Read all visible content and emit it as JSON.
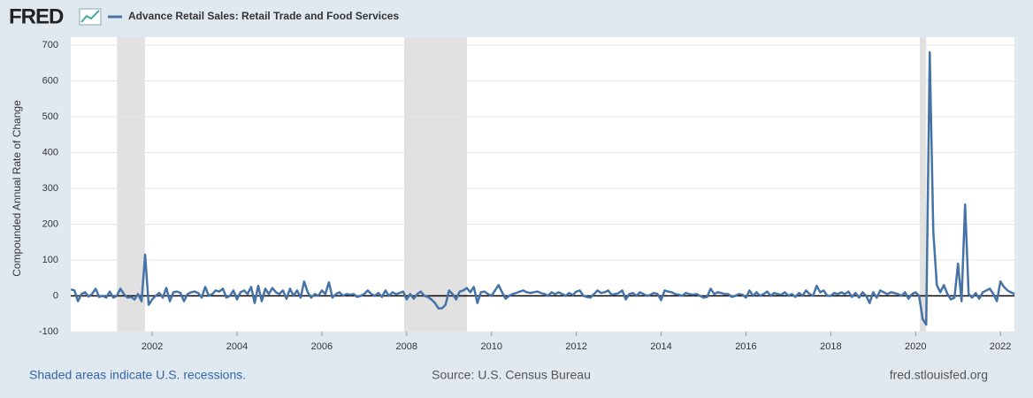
{
  "logo": "FRED",
  "chart_data": {
    "type": "line",
    "title": "Advance Retail Sales: Retail Trade and Food Services",
    "y_label": "Compounded Annual Rate of Change",
    "recession_note": "Shaded areas indicate U.S. recessions.",
    "source": "Source: U.S. Census Bureau",
    "site": "fred.stlouisfed.org",
    "xlim": [
      2000.08,
      2022.33
    ],
    "xticks": [
      2002,
      2004,
      2006,
      2008,
      2010,
      2012,
      2014,
      2016,
      2018,
      2020,
      2022
    ],
    "ylim": [
      -100,
      700
    ],
    "yticks": [
      -100,
      0,
      100,
      200,
      300,
      400,
      500,
      600,
      700
    ],
    "grid": true,
    "recessions": [
      [
        2001.17,
        2001.83
      ],
      [
        2007.94,
        2009.42
      ],
      [
        2020.1,
        2020.25
      ]
    ],
    "x": [
      2000.083,
      2000.167,
      2000.25,
      2000.333,
      2000.417,
      2000.5,
      2000.583,
      2000.667,
      2000.75,
      2000.833,
      2000.917,
      2001,
      2001.083,
      2001.167,
      2001.25,
      2001.333,
      2001.417,
      2001.5,
      2001.583,
      2001.667,
      2001.75,
      2001.833,
      2001.917,
      2002,
      2002.083,
      2002.167,
      2002.25,
      2002.333,
      2002.417,
      2002.5,
      2002.583,
      2002.667,
      2002.75,
      2002.833,
      2002.917,
      2003,
      2003.083,
      2003.167,
      2003.25,
      2003.333,
      2003.417,
      2003.5,
      2003.583,
      2003.667,
      2003.75,
      2003.833,
      2003.917,
      2004,
      2004.083,
      2004.167,
      2004.25,
      2004.333,
      2004.417,
      2004.5,
      2004.583,
      2004.667,
      2004.75,
      2004.833,
      2004.917,
      2005,
      2005.083,
      2005.167,
      2005.25,
      2005.333,
      2005.417,
      2005.5,
      2005.583,
      2005.667,
      2005.75,
      2005.833,
      2005.917,
      2006,
      2006.083,
      2006.167,
      2006.25,
      2006.333,
      2006.417,
      2006.5,
      2006.583,
      2006.667,
      2006.75,
      2006.833,
      2006.917,
      2007,
      2007.083,
      2007.167,
      2007.25,
      2007.333,
      2007.417,
      2007.5,
      2007.583,
      2007.667,
      2007.75,
      2007.833,
      2007.917,
      2008,
      2008.083,
      2008.167,
      2008.25,
      2008.333,
      2008.417,
      2008.5,
      2008.583,
      2008.667,
      2008.75,
      2008.833,
      2008.917,
      2009,
      2009.083,
      2009.167,
      2009.25,
      2009.333,
      2009.417,
      2009.5,
      2009.583,
      2009.667,
      2009.75,
      2009.833,
      2009.917,
      2010,
      2010.083,
      2010.167,
      2010.25,
      2010.333,
      2010.417,
      2010.5,
      2010.583,
      2010.667,
      2010.75,
      2010.833,
      2010.917,
      2011,
      2011.083,
      2011.167,
      2011.25,
      2011.333,
      2011.417,
      2011.5,
      2011.583,
      2011.667,
      2011.75,
      2011.833,
      2011.917,
      2012,
      2012.083,
      2012.167,
      2012.25,
      2012.333,
      2012.417,
      2012.5,
      2012.583,
      2012.667,
      2012.75,
      2012.833,
      2012.917,
      2013,
      2013.083,
      2013.167,
      2013.25,
      2013.333,
      2013.417,
      2013.5,
      2013.583,
      2013.667,
      2013.75,
      2013.833,
      2013.917,
      2014,
      2014.083,
      2014.167,
      2014.25,
      2014.333,
      2014.417,
      2014.5,
      2014.583,
      2014.667,
      2014.75,
      2014.833,
      2014.917,
      2015,
      2015.083,
      2015.167,
      2015.25,
      2015.333,
      2015.417,
      2015.5,
      2015.583,
      2015.667,
      2015.75,
      2015.833,
      2015.917,
      2016,
      2016.083,
      2016.167,
      2016.25,
      2016.333,
      2016.417,
      2016.5,
      2016.583,
      2016.667,
      2016.75,
      2016.833,
      2016.917,
      2017,
      2017.083,
      2017.167,
      2017.25,
      2017.333,
      2017.417,
      2017.5,
      2017.583,
      2017.667,
      2017.75,
      2017.833,
      2017.917,
      2018,
      2018.083,
      2018.167,
      2018.25,
      2018.333,
      2018.417,
      2018.5,
      2018.583,
      2018.667,
      2018.75,
      2018.833,
      2018.917,
      2019,
      2019.083,
      2019.167,
      2019.25,
      2019.333,
      2019.417,
      2019.5,
      2019.583,
      2019.667,
      2019.75,
      2019.833,
      2019.917,
      2020,
      2020.083,
      2020.167,
      2020.25,
      2020.333,
      2020.417,
      2020.5,
      2020.583,
      2020.667,
      2020.75,
      2020.833,
      2020.917,
      2021,
      2021.083,
      2021.167,
      2021.25,
      2021.333,
      2021.417,
      2021.5,
      2021.583,
      2021.667,
      2021.75,
      2021.833,
      2021.917,
      2022,
      2022.083,
      2022.167,
      2022.25,
      2022.333
    ],
    "series": [
      {
        "name": "Advance Retail Sales: Retail Trade and Food Services",
        "color": "#4572a7",
        "values": [
          18,
          15,
          -15,
          5,
          10,
          -2,
          5,
          20,
          -3,
          0,
          -5,
          12,
          -5,
          0,
          20,
          5,
          -5,
          -3,
          -10,
          5,
          -15,
          115,
          -25,
          -10,
          0,
          8,
          -5,
          22,
          -15,
          10,
          12,
          8,
          -15,
          5,
          10,
          12,
          8,
          -5,
          25,
          0,
          5,
          15,
          12,
          20,
          -5,
          0,
          15,
          -10,
          10,
          15,
          5,
          25,
          -20,
          28,
          -15,
          20,
          5,
          22,
          10,
          5,
          15,
          -8,
          20,
          0,
          15,
          -5,
          40,
          10,
          -5,
          5,
          0,
          15,
          5,
          38,
          -5,
          5,
          10,
          0,
          5,
          3,
          5,
          -3,
          0,
          5,
          15,
          5,
          0,
          8,
          -3,
          15,
          0,
          10,
          5,
          8,
          12,
          -10,
          5,
          -8,
          5,
          12,
          0,
          -3,
          -10,
          -20,
          -35,
          -35,
          -25,
          15,
          5,
          -10,
          12,
          15,
          22,
          10,
          25,
          -20,
          10,
          12,
          5,
          0,
          15,
          30,
          10,
          -8,
          0,
          5,
          8,
          12,
          15,
          10,
          8,
          10,
          12,
          8,
          5,
          0,
          10,
          5,
          10,
          5,
          0,
          8,
          2,
          12,
          15,
          0,
          -3,
          -5,
          5,
          15,
          8,
          10,
          15,
          3,
          5,
          8,
          15,
          -10,
          5,
          8,
          0,
          10,
          5,
          0,
          3,
          8,
          5,
          -12,
          15,
          12,
          10,
          5,
          3,
          0,
          8,
          5,
          3,
          5,
          0,
          -5,
          -3,
          20,
          5,
          10,
          8,
          5,
          5,
          -3,
          0,
          5,
          3,
          -5,
          15,
          0,
          10,
          0,
          5,
          12,
          0,
          8,
          5,
          3,
          10,
          0,
          5,
          -3,
          8,
          0,
          15,
          5,
          0,
          28,
          10,
          15,
          0,
          0,
          8,
          5,
          10,
          5,
          12,
          -3,
          8,
          -5,
          10,
          0,
          -20,
          10,
          -5,
          15,
          10,
          5,
          10,
          8,
          5,
          0,
          10,
          -8,
          5,
          10,
          0,
          -65,
          -80,
          680,
          180,
          30,
          10,
          30,
          5,
          -10,
          -5,
          90,
          -15,
          255,
          5,
          -5,
          8,
          -8,
          10,
          15,
          20,
          5,
          -15,
          40,
          25,
          15,
          10,
          5
        ]
      }
    ]
  }
}
